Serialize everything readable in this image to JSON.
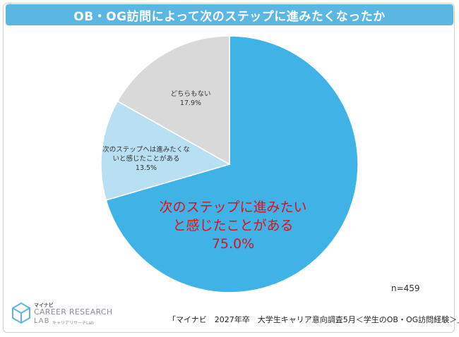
{
  "title": "OB・OG訪問によって次のステップに進みたくなったか",
  "chart_data": {
    "type": "pie",
    "slices": [
      {
        "label": "次のステップに進みたいと感じたことがある",
        "label_lines": [
          "次のステップに進みたい",
          "と感じたことがある"
        ],
        "pct_text": "75.0%",
        "value": 75.0,
        "color": "#3fb3e6"
      },
      {
        "label": "次のステップへは進みたくないと感じたことがある",
        "label_lines": [
          "次のステップへは進みたくな",
          "いと感じたことがある"
        ],
        "pct_text": "13.5%",
        "value": 13.5,
        "color": "#b9dff2"
      },
      {
        "label": "どちらもない",
        "label_lines": [
          "どちらもない"
        ],
        "pct_text": "17.9%",
        "value": 17.9,
        "color": "#d9d9d9"
      }
    ],
    "n_label": "n=459"
  },
  "source": "「マイナビ　2027年卒　大学生キャリア意向調査5月＜学生のOB・OG訪問経験＞」",
  "logo": {
    "small": "マイナビ",
    "big": "CAREER RESEARCH",
    "lab": "LAB",
    "ja": "キャリアリサーチLab"
  }
}
